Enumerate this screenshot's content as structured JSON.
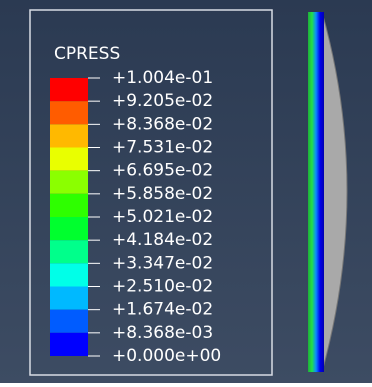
{
  "legend": {
    "title": "CPRESS",
    "labels": [
      "+1.004e-01",
      "+9.205e-02",
      "+8.368e-02",
      "+7.531e-02",
      "+6.695e-02",
      "+5.858e-02",
      "+5.021e-02",
      "+4.184e-02",
      "+3.347e-02",
      "+2.510e-02",
      "+1.674e-02",
      "+8.368e-03",
      "+0.000e+00"
    ],
    "colors": [
      "#ff0000",
      "#ff5c00",
      "#ffb900",
      "#e9ff00",
      "#8bff00",
      "#2eff00",
      "#00ff2e",
      "#00ff8b",
      "#00ffe8",
      "#00b9ff",
      "#005cff",
      "#0000ff"
    ]
  }
}
